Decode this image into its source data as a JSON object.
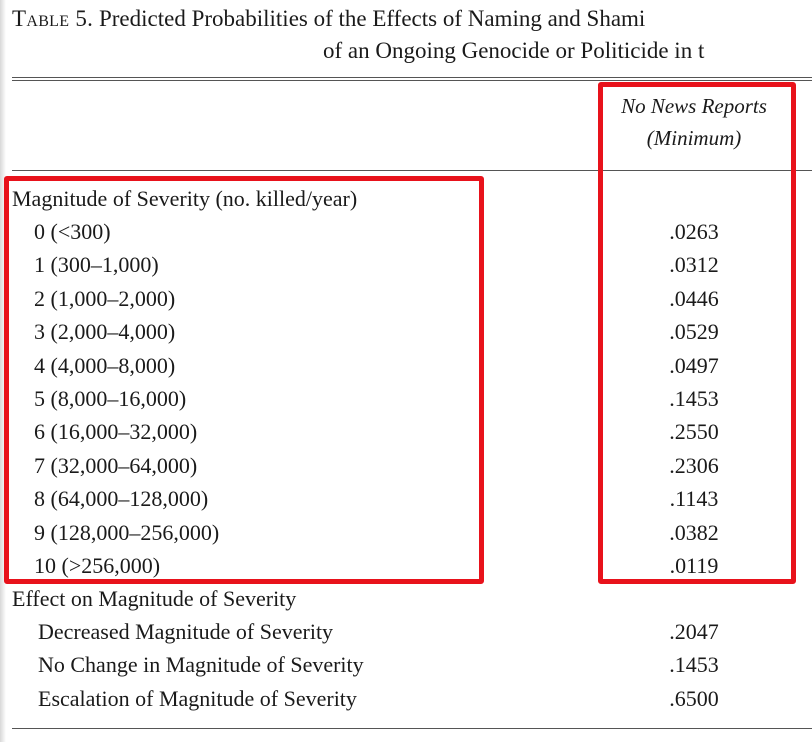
{
  "caption": {
    "table_label": "Table 5.",
    "line1": "Predicted Probabilities of the Effects of Naming and Shami",
    "line2": "of an Ongoing Genocide or Politicide in t"
  },
  "column": {
    "header_line1": "No News Reports",
    "header_line2": "(Minimum)"
  },
  "section1": {
    "title": "Magnitude of Severity (no. killed/year)",
    "rows": [
      {
        "label": "0 (<300)",
        "value": ".0263"
      },
      {
        "label": "1 (300–1,000)",
        "value": ".0312"
      },
      {
        "label": "2 (1,000–2,000)",
        "value": ".0446"
      },
      {
        "label": "3 (2,000–4,000)",
        "value": ".0529"
      },
      {
        "label": "4 (4,000–8,000)",
        "value": ".0497"
      },
      {
        "label": "5 (8,000–16,000)",
        "value": ".1453"
      },
      {
        "label": "6 (16,000–32,000)",
        "value": ".2550"
      },
      {
        "label": "7 (32,000–64,000)",
        "value": ".2306"
      },
      {
        "label": "8 (64,000–128,000)",
        "value": ".1143"
      },
      {
        "label": "9 (128,000–256,000)",
        "value": ".0382"
      },
      {
        "label": "10 (>256,000)",
        "value": ".0119"
      }
    ]
  },
  "section2": {
    "title": "Effect on Magnitude of Severity",
    "rows": [
      {
        "label": "Decreased Magnitude of Severity",
        "value": ".2047"
      },
      {
        "label": "No Change in Magnitude of Severity",
        "value": ".1453"
      },
      {
        "label": "Escalation of Magnitude of Severity",
        "value": ".6500"
      }
    ]
  },
  "colors": {
    "highlight": "#e8121b"
  }
}
